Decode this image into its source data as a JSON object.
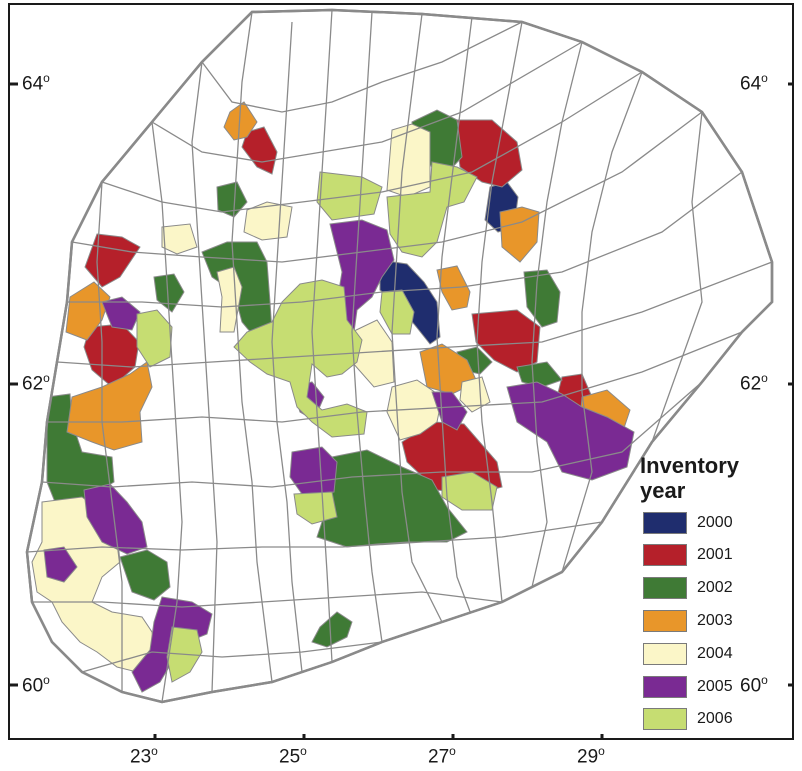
{
  "map": {
    "latitude_labels_left": [
      {
        "deg": "64",
        "sup": "o"
      },
      {
        "deg": "62",
        "sup": "o"
      },
      {
        "deg": "60",
        "sup": "o"
      }
    ],
    "latitude_labels_right": [
      {
        "deg": "64",
        "sup": "o"
      },
      {
        "deg": "62",
        "sup": "o"
      },
      {
        "deg": "60",
        "sup": "o"
      }
    ],
    "longitude_labels": [
      {
        "deg": "23",
        "sup": "o"
      },
      {
        "deg": "25",
        "sup": "o"
      },
      {
        "deg": "27",
        "sup": "o"
      },
      {
        "deg": "29",
        "sup": "o"
      }
    ],
    "colors": {
      "boundary": "#8a8a8a",
      "frame": "#1a1a1a",
      "land": "#ffffff"
    }
  },
  "legend": {
    "title_line1": "Inventory",
    "title_line2": "year",
    "items": [
      {
        "year": "2000",
        "color": "#1f2d6e"
      },
      {
        "year": "2001",
        "color": "#b5202a"
      },
      {
        "year": "2002",
        "color": "#3f7a35"
      },
      {
        "year": "2003",
        "color": "#e8962a"
      },
      {
        "year": "2004",
        "color": "#fbf6c8"
      },
      {
        "year": "2005",
        "color": "#7a2a93"
      },
      {
        "year": "2006",
        "color": "#c6dd72"
      }
    ]
  }
}
